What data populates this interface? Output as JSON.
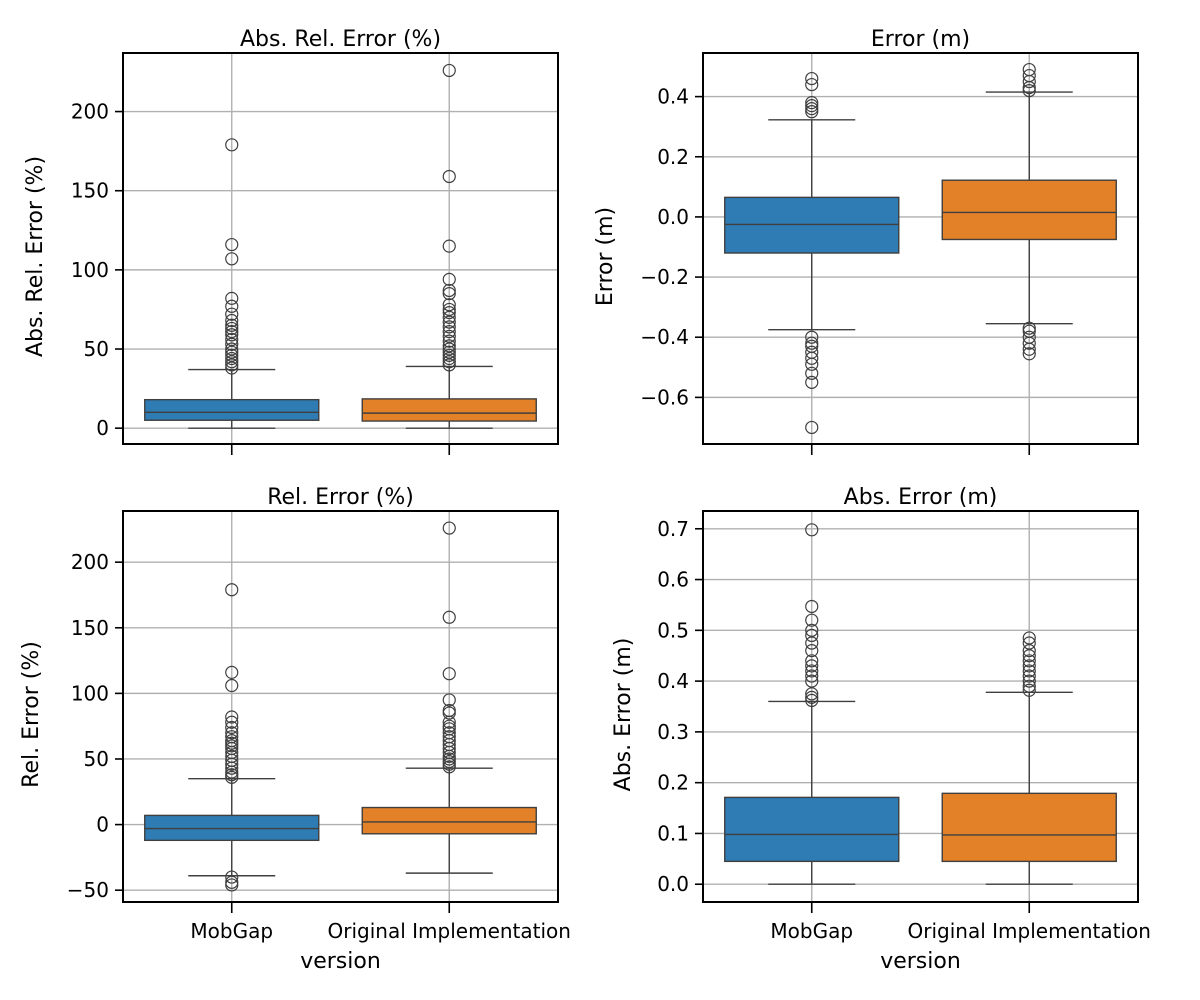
{
  "figure": {
    "xlabel": "version",
    "categories": [
      "MobGap",
      "Original Implementation"
    ],
    "colors": {
      "MobGap": "#2f7bb4",
      "Original Implementation": "#e38128"
    }
  },
  "chart_data": [
    {
      "type": "box",
      "title": "Abs. Rel. Error (%)",
      "ylabel": "Abs. Rel. Error (%)",
      "ylim": [
        -10,
        237
      ],
      "yticks": [
        0,
        50,
        100,
        150,
        200
      ],
      "ytick_labels": [
        "0",
        "50",
        "100",
        "150",
        "200"
      ],
      "grid": true,
      "show_xticklabels": false,
      "boxes": [
        {
          "name": "MobGap",
          "whislo": 0,
          "q1": 5,
          "med": 10,
          "q3": 18,
          "whishi": 37,
          "fliers": [
            38,
            40,
            42,
            44,
            46,
            48,
            50,
            53,
            56,
            59,
            61,
            63,
            65,
            68,
            72,
            77,
            82,
            107,
            116,
            179
          ]
        },
        {
          "name": "Original Implementation",
          "whislo": 0,
          "q1": 4.5,
          "med": 9.5,
          "q3": 18.5,
          "whishi": 39,
          "fliers": [
            40,
            42,
            44,
            46,
            48,
            50,
            52,
            55,
            58,
            61,
            64,
            67,
            70,
            73,
            75,
            78,
            85,
            87,
            94,
            115,
            159,
            226
          ]
        }
      ]
    },
    {
      "type": "box",
      "title": "Error (m)",
      "ylabel": "Error (m)",
      "ylim": [
        -0.755,
        0.545
      ],
      "yticks": [
        -0.6,
        -0.4,
        -0.2,
        0.0,
        0.2,
        0.4
      ],
      "ytick_labels": [
        "−0.6",
        "−0.4",
        "−0.2",
        "0.0",
        "0.2",
        "0.4"
      ],
      "grid": true,
      "show_xticklabels": false,
      "boxes": [
        {
          "name": "MobGap",
          "whislo": -0.375,
          "q1": -0.12,
          "med": -0.025,
          "q3": 0.065,
          "whishi": 0.323,
          "fliers": [
            0.35,
            0.36,
            0.37,
            0.38,
            0.44,
            0.46,
            -0.4,
            -0.42,
            -0.43,
            -0.45,
            -0.47,
            -0.49,
            -0.52,
            -0.55,
            -0.7
          ]
        },
        {
          "name": "Original Implementation",
          "whislo": -0.355,
          "q1": -0.075,
          "med": 0.015,
          "q3": 0.122,
          "whishi": 0.415,
          "fliers": [
            0.42,
            0.43,
            0.45,
            0.47,
            0.49,
            -0.37,
            -0.38,
            -0.4,
            -0.42,
            -0.44,
            -0.455
          ]
        }
      ]
    },
    {
      "type": "box",
      "title": "Rel. Error (%)",
      "ylabel": "Rel. Error (%)",
      "ylim": [
        -59,
        239
      ],
      "yticks": [
        -50,
        0,
        50,
        100,
        150,
        200
      ],
      "ytick_labels": [
        "−50",
        "0",
        "50",
        "100",
        "150",
        "200"
      ],
      "grid": true,
      "show_xticklabels": true,
      "boxes": [
        {
          "name": "MobGap",
          "whislo": -39,
          "q1": -12,
          "med": -3,
          "q3": 7,
          "whishi": 35,
          "fliers": [
            36,
            38,
            40,
            43,
            46,
            49,
            52,
            55,
            58,
            60,
            62,
            64,
            67,
            70,
            74,
            78,
            82,
            106,
            116,
            179,
            -40,
            -44,
            -46
          ]
        },
        {
          "name": "Original Implementation",
          "whislo": -37,
          "q1": -7,
          "med": 2,
          "q3": 13,
          "whishi": 43,
          "fliers": [
            44,
            46,
            48,
            50,
            52,
            55,
            58,
            61,
            64,
            67,
            70,
            73,
            75,
            78,
            85,
            87,
            95,
            115,
            158,
            226
          ]
        }
      ]
    },
    {
      "type": "box",
      "title": "Abs. Error (m)",
      "ylabel": "Abs. Error (m)",
      "ylim": [
        -0.035,
        0.735
      ],
      "yticks": [
        0.0,
        0.1,
        0.2,
        0.3,
        0.4,
        0.5,
        0.6,
        0.7
      ],
      "ytick_labels": [
        "0.0",
        "0.1",
        "0.2",
        "0.3",
        "0.4",
        "0.5",
        "0.6",
        "0.7"
      ],
      "grid": true,
      "show_xticklabels": true,
      "boxes": [
        {
          "name": "MobGap",
          "whislo": 0,
          "q1": 0.045,
          "med": 0.098,
          "q3": 0.171,
          "whishi": 0.36,
          "fliers": [
            0.362,
            0.368,
            0.375,
            0.4,
            0.41,
            0.42,
            0.43,
            0.44,
            0.46,
            0.475,
            0.49,
            0.5,
            0.52,
            0.547,
            0.698
          ]
        },
        {
          "name": "Original Implementation",
          "whislo": 0,
          "q1": 0.045,
          "med": 0.097,
          "q3": 0.179,
          "whishi": 0.378,
          "fliers": [
            0.382,
            0.39,
            0.4,
            0.41,
            0.42,
            0.43,
            0.44,
            0.45,
            0.46,
            0.475,
            0.485
          ]
        }
      ]
    }
  ]
}
